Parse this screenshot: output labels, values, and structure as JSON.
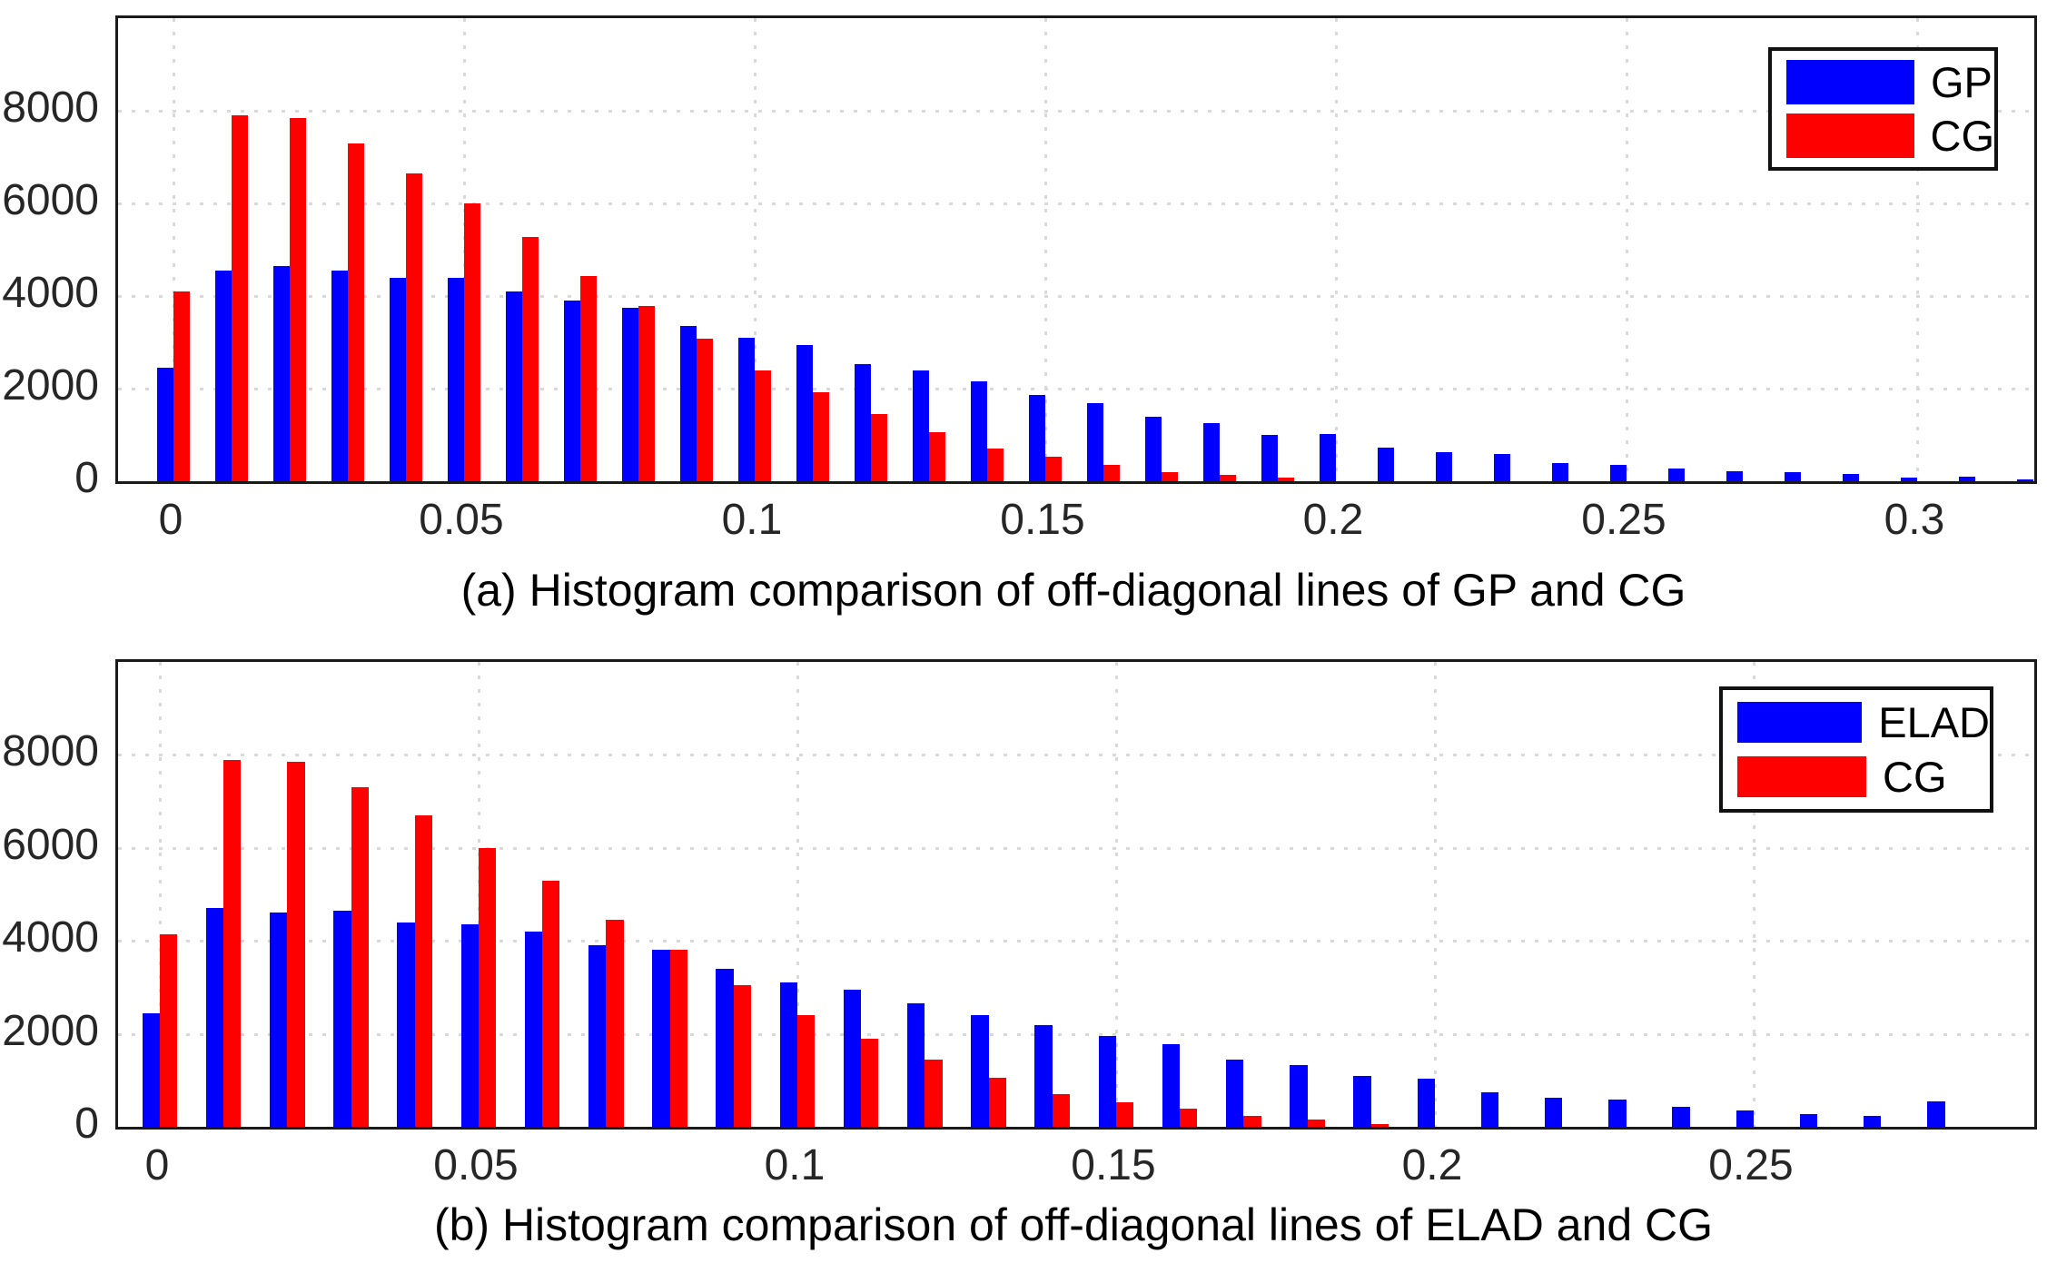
{
  "page": {
    "background": "#ffffff"
  },
  "colors": {
    "series_blue": "#0000ff",
    "series_red": "#ff0000",
    "axis": "#1a1a1a",
    "grid": "#d9d9d9",
    "tick_text": "#262626",
    "caption_text": "#000000"
  },
  "chart_data": [
    {
      "id": "a",
      "type": "bar",
      "caption": "(a) Histogram comparison of off-diagonal lines of GP and CG",
      "xlabel": "",
      "ylabel": "",
      "grid": true,
      "legend_position": "top-right",
      "xlim": [
        -0.00953,
        0.32016
      ],
      "ylim": [
        0,
        10000
      ],
      "categories": [
        0,
        0.01,
        0.02,
        0.03,
        0.04,
        0.05,
        0.06,
        0.07,
        0.08,
        0.09,
        0.1,
        0.11,
        0.12,
        0.13,
        0.14,
        0.15,
        0.16,
        0.17,
        0.18,
        0.19,
        0.2,
        0.21,
        0.22,
        0.23,
        0.24,
        0.25,
        0.26,
        0.27,
        0.28,
        0.29,
        0.3,
        0.31,
        0.32
      ],
      "series": [
        {
          "name": "GP",
          "color": "#0000ff",
          "values": [
            2450,
            4550,
            4650,
            4550,
            4400,
            4400,
            4100,
            3900,
            3750,
            3350,
            3100,
            2950,
            2530,
            2400,
            2150,
            1870,
            1690,
            1400,
            1250,
            1000,
            1010,
            730,
            620,
            590,
            400,
            350,
            270,
            225,
            190,
            150,
            85,
            90,
            40
          ]
        },
        {
          "name": "CG",
          "color": "#ff0000",
          "values": [
            4100,
            7900,
            7850,
            7300,
            6650,
            6000,
            5270,
            4430,
            3780,
            3080,
            2400,
            1920,
            1450,
            1050,
            700,
            530,
            350,
            200,
            140,
            85,
            null,
            null,
            null,
            null,
            null,
            null,
            null,
            null,
            null,
            null,
            null,
            null,
            null
          ]
        }
      ],
      "x_ticks": [
        {
          "value": 0,
          "label": "0"
        },
        {
          "value": 0.05,
          "label": "0.05"
        },
        {
          "value": 0.1,
          "label": "0.1"
        },
        {
          "value": 0.15,
          "label": "0.15"
        },
        {
          "value": 0.2,
          "label": "0.2"
        },
        {
          "value": 0.25,
          "label": "0.25"
        },
        {
          "value": 0.3,
          "label": "0.3"
        }
      ],
      "y_ticks": [
        {
          "value": 0,
          "label": "0"
        },
        {
          "value": 2000,
          "label": "2000"
        },
        {
          "value": 4000,
          "label": "4000"
        },
        {
          "value": 6000,
          "label": "6000"
        },
        {
          "value": 8000,
          "label": "8000"
        }
      ]
    },
    {
      "id": "b",
      "type": "bar",
      "caption": "(b) Histogram comparison of off-diagonal lines of ELAD and CG",
      "xlabel": "",
      "ylabel": "",
      "grid": true,
      "legend_position": "top-right",
      "xlim": [
        -0.00655,
        0.29402
      ],
      "ylim": [
        0,
        10000
      ],
      "categories": [
        0,
        0.01,
        0.02,
        0.03,
        0.04,
        0.05,
        0.06,
        0.07,
        0.08,
        0.09,
        0.1,
        0.11,
        0.12,
        0.13,
        0.14,
        0.15,
        0.16,
        0.17,
        0.18,
        0.19,
        0.2,
        0.21,
        0.22,
        0.23,
        0.24,
        0.25,
        0.26,
        0.27,
        0.28
      ],
      "series": [
        {
          "name": "ELAD",
          "color": "#0000ff",
          "values": [
            2450,
            4700,
            4600,
            4650,
            4400,
            4350,
            4200,
            3900,
            3800,
            3400,
            3100,
            2950,
            2650,
            2400,
            2180,
            1950,
            1770,
            1450,
            1330,
            1100,
            1030,
            750,
            630,
            590,
            430,
            360,
            280,
            240,
            550
          ]
        },
        {
          "name": "CG",
          "color": "#ff0000",
          "values": [
            4150,
            7900,
            7850,
            7300,
            6700,
            6000,
            5300,
            4450,
            3800,
            3050,
            2400,
            1900,
            1450,
            1050,
            700,
            530,
            400,
            240,
            160,
            60,
            null,
            null,
            null,
            null,
            null,
            null,
            null,
            null,
            null
          ]
        }
      ],
      "x_ticks": [
        {
          "value": 0,
          "label": "0"
        },
        {
          "value": 0.05,
          "label": "0.05"
        },
        {
          "value": 0.1,
          "label": "0.1"
        },
        {
          "value": 0.15,
          "label": "0.15"
        },
        {
          "value": 0.2,
          "label": "0.2"
        },
        {
          "value": 0.25,
          "label": "0.25"
        }
      ],
      "y_ticks": [
        {
          "value": 0,
          "label": "0"
        },
        {
          "value": 2000,
          "label": "2000"
        },
        {
          "value": 4000,
          "label": "4000"
        },
        {
          "value": 6000,
          "label": "6000"
        },
        {
          "value": 8000,
          "label": "8000"
        }
      ]
    }
  ]
}
